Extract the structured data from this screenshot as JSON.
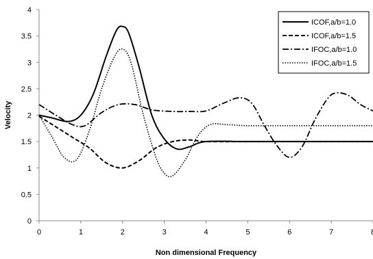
{
  "chart_data": {
    "type": "line",
    "xlabel": "Non dimensional Frequency",
    "ylabel": "Velocity",
    "xlim": [
      0,
      8
    ],
    "ylim": [
      0,
      4
    ],
    "xticks": [
      "0",
      "1",
      "2",
      "3",
      "4",
      "5",
      "6",
      "7",
      "8"
    ],
    "yticks": [
      "0",
      "0.5",
      "1",
      "1.5",
      "2",
      "2.5",
      "3",
      "3.5",
      "4"
    ],
    "grid": false,
    "legend_position": "top-right",
    "series": [
      {
        "name": "ICOF,a/b=1.0",
        "style": "solid",
        "points": [
          [
            0,
            2.0
          ],
          [
            0.3,
            1.95
          ],
          [
            0.7,
            1.88
          ],
          [
            1.0,
            2.0
          ],
          [
            1.3,
            2.4
          ],
          [
            1.6,
            3.1
          ],
          [
            1.85,
            3.6
          ],
          [
            2.0,
            3.68
          ],
          [
            2.15,
            3.55
          ],
          [
            2.4,
            2.9
          ],
          [
            2.7,
            2.0
          ],
          [
            3.0,
            1.55
          ],
          [
            3.3,
            1.36
          ],
          [
            3.6,
            1.4
          ],
          [
            4.0,
            1.5
          ],
          [
            5.0,
            1.5
          ],
          [
            6.0,
            1.5
          ],
          [
            7.0,
            1.5
          ],
          [
            8.0,
            1.5
          ]
        ]
      },
      {
        "name": "ICOF,a/b=1.5",
        "style": "dashed",
        "points": [
          [
            0,
            1.98
          ],
          [
            0.4,
            1.78
          ],
          [
            0.8,
            1.58
          ],
          [
            1.2,
            1.38
          ],
          [
            1.6,
            1.1
          ],
          [
            2.0,
            1.0
          ],
          [
            2.4,
            1.14
          ],
          [
            2.8,
            1.38
          ],
          [
            3.2,
            1.5
          ],
          [
            3.6,
            1.53
          ],
          [
            4.0,
            1.5
          ],
          [
            5.0,
            1.5
          ],
          [
            6.0,
            1.5
          ],
          [
            7.0,
            1.5
          ],
          [
            8.0,
            1.5
          ]
        ]
      },
      {
        "name": "IFOC,a/b=1.0",
        "style": "dashdot",
        "points": [
          [
            0,
            2.2
          ],
          [
            0.4,
            2.0
          ],
          [
            0.8,
            1.82
          ],
          [
            1.1,
            1.8
          ],
          [
            1.5,
            2.05
          ],
          [
            1.9,
            2.2
          ],
          [
            2.3,
            2.2
          ],
          [
            2.7,
            2.1
          ],
          [
            3.2,
            2.07
          ],
          [
            3.6,
            2.07
          ],
          [
            4.0,
            2.08
          ],
          [
            4.4,
            2.22
          ],
          [
            4.8,
            2.33
          ],
          [
            5.1,
            2.22
          ],
          [
            5.4,
            1.8
          ],
          [
            5.7,
            1.42
          ],
          [
            6.0,
            1.2
          ],
          [
            6.3,
            1.4
          ],
          [
            6.6,
            1.9
          ],
          [
            6.9,
            2.3
          ],
          [
            7.1,
            2.42
          ],
          [
            7.4,
            2.38
          ],
          [
            7.7,
            2.2
          ],
          [
            8.0,
            2.08
          ]
        ]
      },
      {
        "name": "IFOC,a/b=1.5",
        "style": "dotted",
        "points": [
          [
            0,
            2.0
          ],
          [
            0.3,
            1.6
          ],
          [
            0.6,
            1.2
          ],
          [
            0.9,
            1.16
          ],
          [
            1.2,
            1.7
          ],
          [
            1.5,
            2.5
          ],
          [
            1.8,
            3.1
          ],
          [
            2.0,
            3.25
          ],
          [
            2.2,
            3.0
          ],
          [
            2.5,
            2.0
          ],
          [
            2.8,
            1.2
          ],
          [
            3.0,
            0.9
          ],
          [
            3.2,
            0.85
          ],
          [
            3.5,
            1.15
          ],
          [
            3.8,
            1.6
          ],
          [
            4.1,
            1.82
          ],
          [
            4.5,
            1.82
          ],
          [
            5.0,
            1.8
          ],
          [
            6.0,
            1.8
          ],
          [
            7.0,
            1.8
          ],
          [
            8.0,
            1.8
          ]
        ]
      }
    ]
  }
}
